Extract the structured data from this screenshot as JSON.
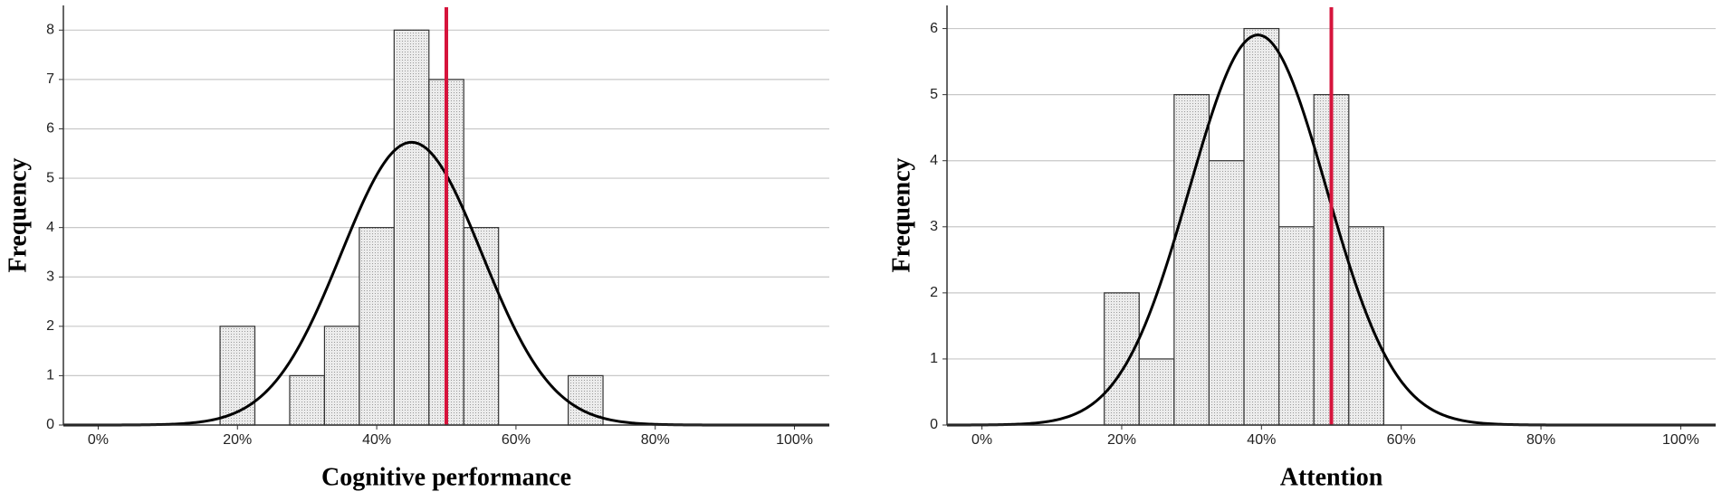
{
  "chart_data": [
    {
      "type": "histogram",
      "x_label": "Cognitive performance",
      "y_label": "Frequency",
      "bins": [
        17.5,
        22.5,
        27.5,
        32.5,
        37.5,
        42.5,
        47.5,
        52.5,
        57.5,
        62.5,
        67.5,
        72.5
      ],
      "counts": [
        2,
        0,
        1,
        2,
        4,
        8,
        7,
        4,
        0,
        0,
        1
      ],
      "xlim": [
        -5,
        105
      ],
      "xticks": [
        {
          "value": 0,
          "label": "0%"
        },
        {
          "value": 20,
          "label": "20%"
        },
        {
          "value": 40,
          "label": "40%"
        },
        {
          "value": 60,
          "label": "60%"
        },
        {
          "value": 80,
          "label": "80%"
        },
        {
          "value": 100,
          "label": "100%"
        }
      ],
      "ylim": [
        0,
        8.5
      ],
      "yticks": [
        0,
        1,
        2,
        3,
        4,
        5,
        6,
        7,
        8
      ],
      "grid": true,
      "curve": {
        "mean": 45,
        "sd": 10.1
      },
      "reference_line": 50,
      "color": "#e6e6e6",
      "curve_color": "#000000",
      "reference_color": "#d6143c"
    },
    {
      "type": "histogram",
      "x_label": "Attention",
      "y_label": "Frequency",
      "bins": [
        17.5,
        22.5,
        27.5,
        32.5,
        37.5,
        42.5,
        47.5,
        52.5,
        57.5
      ],
      "counts": [
        2,
        1,
        5,
        4,
        6,
        3,
        5,
        3
      ],
      "xlim": [
        -5,
        105
      ],
      "xticks": [
        {
          "value": 0,
          "label": "0%"
        },
        {
          "value": 20,
          "label": "20%"
        },
        {
          "value": 40,
          "label": "40%"
        },
        {
          "value": 60,
          "label": "60%"
        },
        {
          "value": 80,
          "label": "80%"
        },
        {
          "value": 100,
          "label": "100%"
        }
      ],
      "ylim": [
        0,
        6.35
      ],
      "yticks": [
        0,
        1,
        2,
        3,
        4,
        5,
        6
      ],
      "grid": true,
      "curve": {
        "mean": 39.5,
        "sd": 9.8
      },
      "reference_line": 50,
      "color": "#e6e6e6",
      "curve_color": "#000000",
      "reference_color": "#d6143c"
    }
  ]
}
